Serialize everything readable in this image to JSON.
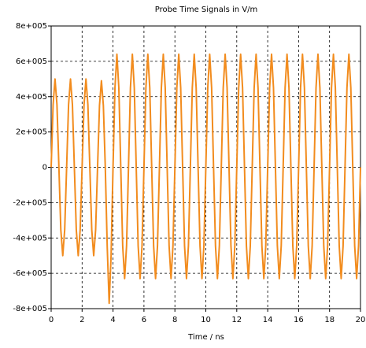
{
  "chart_data": {
    "type": "line",
    "title": "Probe Time Signals in V/m",
    "x_label": "Time / ns",
    "color": "#f28c1e",
    "grid": true,
    "xlim": [
      0,
      20
    ],
    "xticks": [
      0,
      2,
      4,
      6,
      8,
      10,
      12,
      14,
      16,
      18,
      20
    ],
    "ylim": [
      -800000,
      800000
    ],
    "yticks": [
      {
        "value": -800000,
        "label": "-8e+005"
      },
      {
        "value": -600000,
        "label": "-6e+005"
      },
      {
        "value": -400000,
        "label": "-4e+005"
      },
      {
        "value": -200000,
        "label": "-2e+005"
      },
      0,
      {
        "value": 200000,
        "label": "2e+005"
      },
      {
        "value": 400000,
        "label": "4e+005"
      },
      {
        "value": 600000,
        "label": "6e+005"
      },
      {
        "value": 800000,
        "label": "8e+005"
      }
    ],
    "x": [
      0,
      0.125,
      0.25,
      0.375,
      0.5,
      0.625,
      0.75,
      0.875,
      1,
      1.125,
      1.25,
      1.375,
      1.5,
      1.625,
      1.75,
      1.875,
      2,
      2.125,
      2.25,
      2.375,
      2.5,
      2.625,
      2.75,
      2.875,
      3,
      3.125,
      3.25,
      3.375,
      3.5,
      3.625,
      3.75,
      3.875,
      4,
      4.125,
      4.25,
      4.375,
      4.5,
      4.625,
      4.75,
      4.875,
      5,
      5.125,
      5.25,
      5.375,
      5.5,
      5.625,
      5.75,
      5.875,
      6,
      6.125,
      6.25,
      6.375,
      6.5,
      6.625,
      6.75,
      6.875,
      7,
      7.125,
      7.25,
      7.375,
      7.5,
      7.625,
      7.75,
      7.875,
      8,
      8.125,
      8.25,
      8.375,
      8.5,
      8.625,
      8.75,
      8.875,
      9,
      9.125,
      9.25,
      9.375,
      9.5,
      9.625,
      9.75,
      9.875,
      10,
      10.125,
      10.25,
      10.375,
      10.5,
      10.625,
      10.75,
      10.875,
      11,
      11.125,
      11.25,
      11.375,
      11.5,
      11.625,
      11.75,
      11.875,
      12,
      12.125,
      12.25,
      12.375,
      12.5,
      12.625,
      12.75,
      12.875,
      13,
      13.125,
      13.25,
      13.375,
      13.5,
      13.625,
      13.75,
      13.875,
      14,
      14.125,
      14.25,
      14.375,
      14.5,
      14.625,
      14.75,
      14.875,
      15,
      15.125,
      15.25,
      15.375,
      15.5,
      15.625,
      15.75,
      15.875,
      16,
      16.125,
      16.25,
      16.375,
      16.5,
      16.625,
      16.75,
      16.875,
      17,
      17.125,
      17.25,
      17.375,
      17.5,
      17.625,
      17.75,
      17.875,
      18,
      18.125,
      18.25,
      18.375,
      18.5,
      18.625,
      18.75,
      18.875,
      19,
      19.125,
      19.25,
      19.375,
      19.5,
      19.625,
      19.75,
      19.875,
      20
    ],
    "values": [
      0,
      354000,
      500000,
      354000,
      0,
      -354000,
      -500000,
      -354000,
      0,
      354000,
      500000,
      354000,
      0,
      -354000,
      -500000,
      -354000,
      0,
      354000,
      500000,
      354000,
      0,
      -354000,
      -500000,
      -354000,
      0,
      350000,
      490000,
      350000,
      0,
      -450000,
      -770000,
      -500000,
      0,
      450000,
      640000,
      450000,
      0,
      -445000,
      -630000,
      -445000,
      0,
      450000,
      640000,
      450000,
      0,
      -445000,
      -630000,
      -445000,
      0,
      450000,
      640000,
      450000,
      0,
      -445000,
      -630000,
      -445000,
      0,
      450000,
      640000,
      450000,
      0,
      -445000,
      -630000,
      -445000,
      0,
      450000,
      640000,
      450000,
      0,
      -445000,
      -630000,
      -445000,
      0,
      450000,
      640000,
      450000,
      0,
      -445000,
      -630000,
      -445000,
      0,
      450000,
      640000,
      450000,
      0,
      -445000,
      -630000,
      -445000,
      0,
      450000,
      640000,
      450000,
      0,
      -445000,
      -630000,
      -445000,
      0,
      450000,
      640000,
      450000,
      0,
      -445000,
      -630000,
      -445000,
      0,
      450000,
      640000,
      450000,
      0,
      -445000,
      -630000,
      -445000,
      0,
      450000,
      640000,
      450000,
      0,
      -445000,
      -630000,
      -445000,
      0,
      450000,
      640000,
      450000,
      0,
      -445000,
      -630000,
      -445000,
      0,
      450000,
      640000,
      450000,
      0,
      -445000,
      -630000,
      -445000,
      0,
      450000,
      640000,
      450000,
      0,
      -445000,
      -630000,
      -445000,
      0,
      450000,
      640000,
      450000,
      0,
      -445000,
      -630000,
      -445000,
      0,
      450000,
      640000,
      450000,
      0,
      -445000,
      -630000,
      -445000,
      0
    ]
  }
}
